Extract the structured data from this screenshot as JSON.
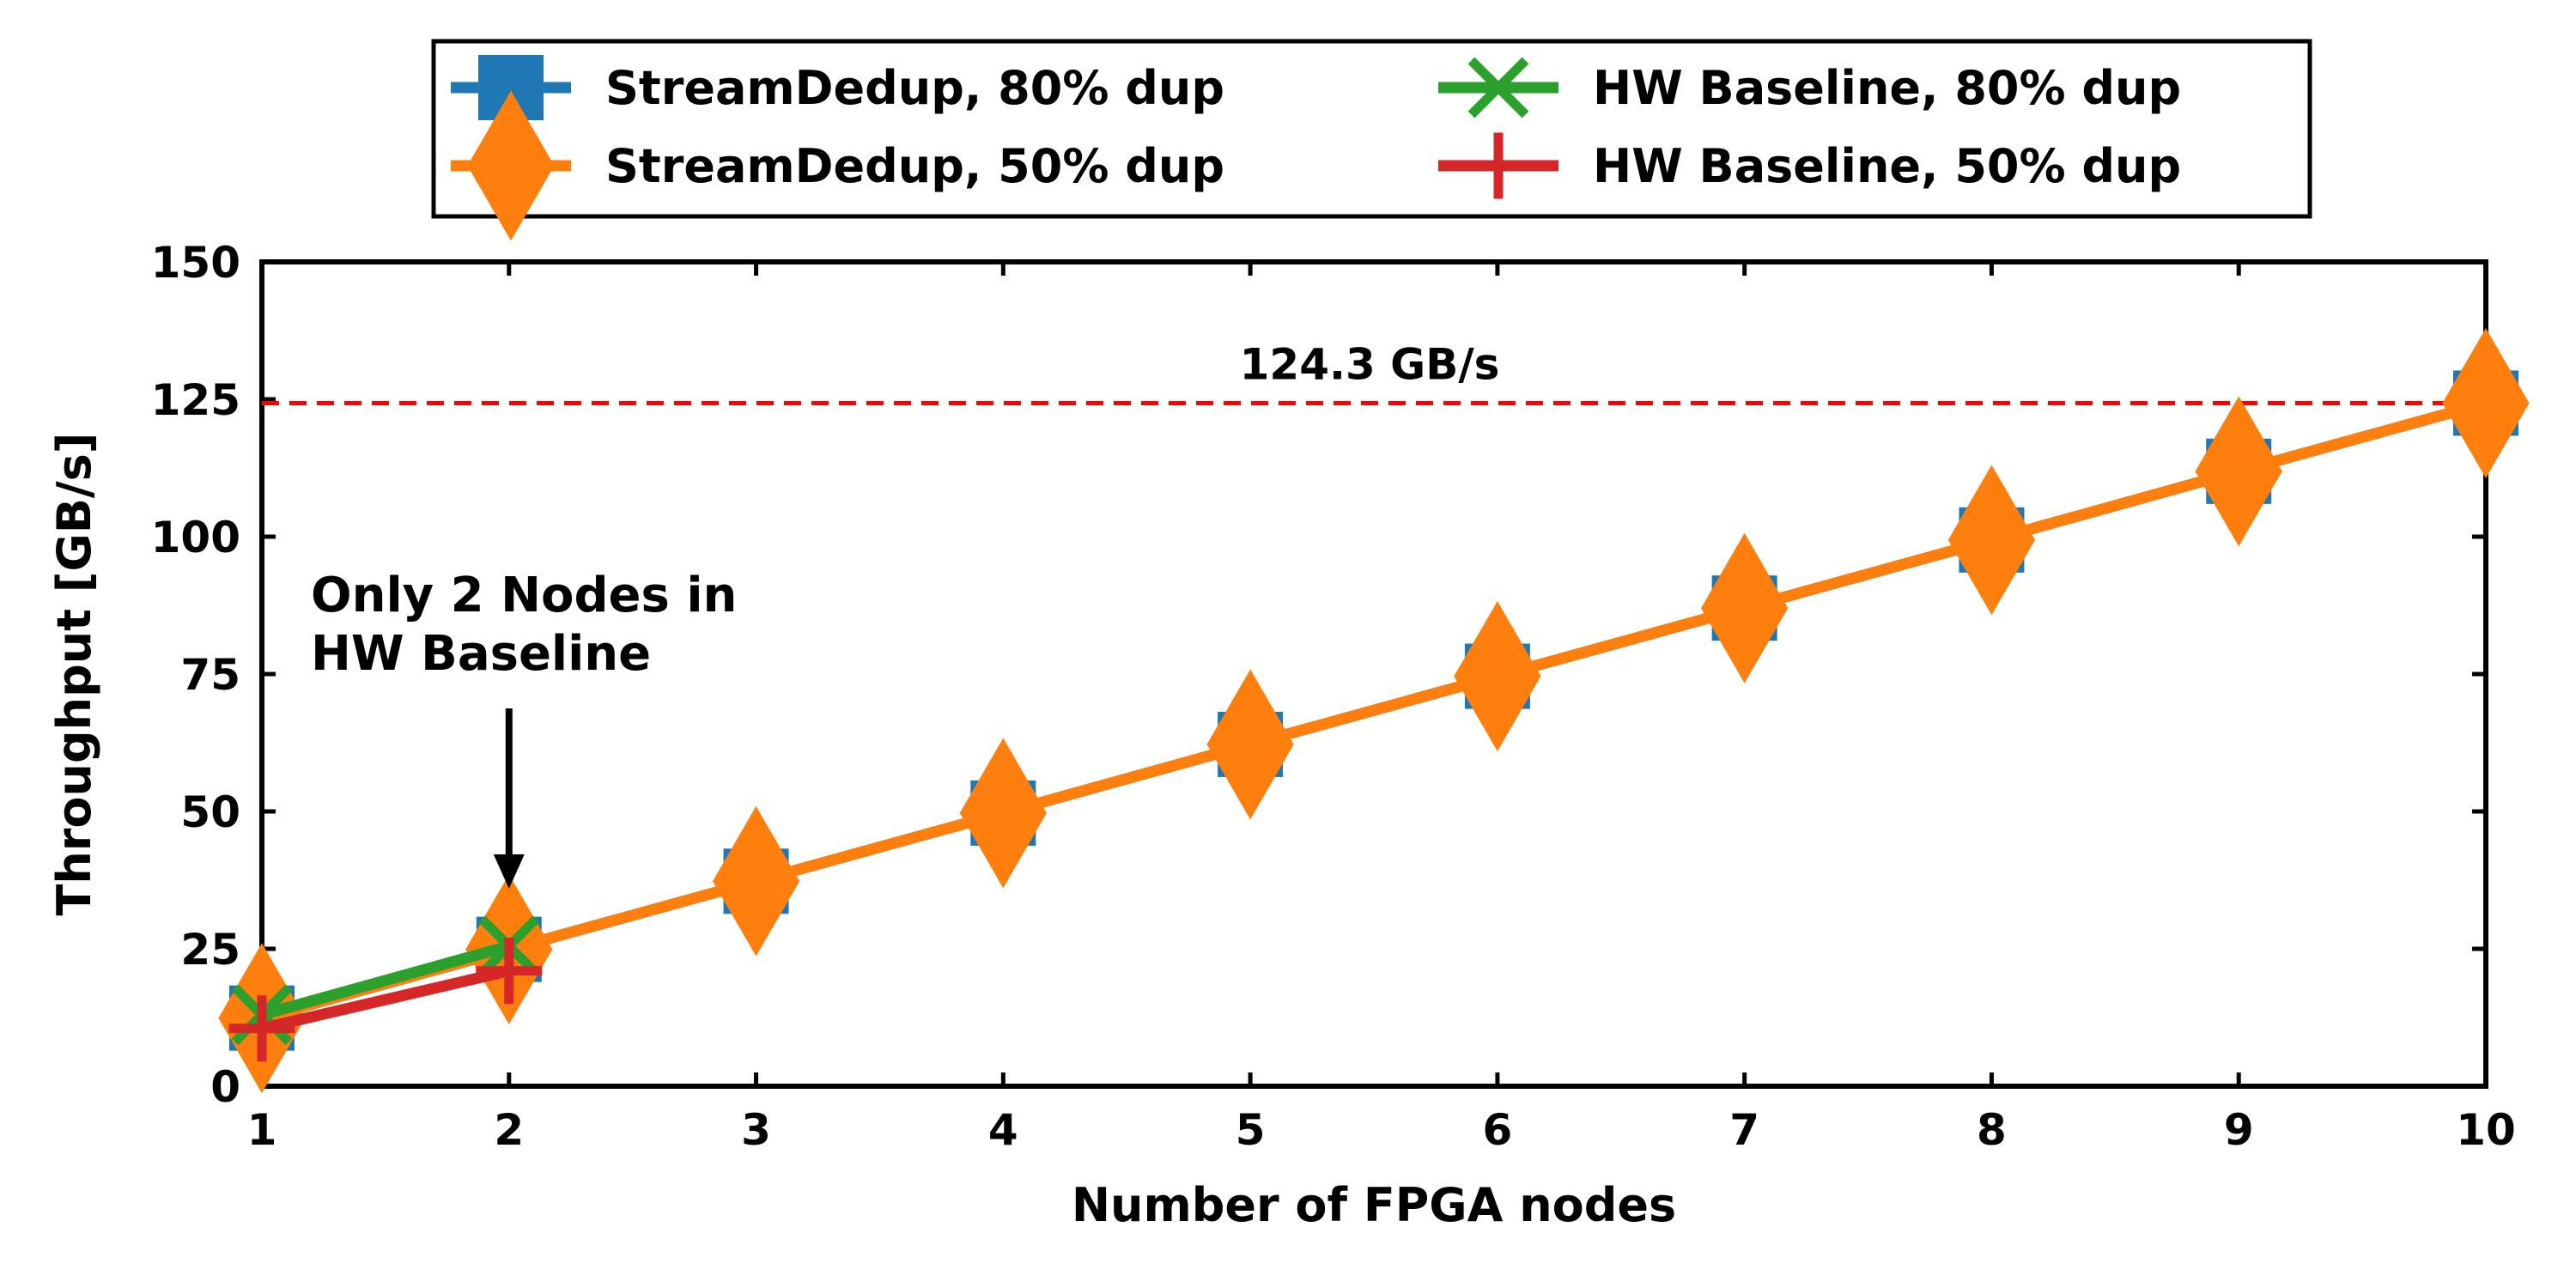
{
  "chart_data": {
    "type": "line",
    "xlabel": "Number of FPGA nodes",
    "ylabel": "Throughput [GB/s]",
    "xlim": [
      1,
      10
    ],
    "ylim": [
      0,
      150
    ],
    "xticks": [
      1,
      2,
      3,
      4,
      5,
      6,
      7,
      8,
      9,
      10
    ],
    "yticks": [
      0,
      25,
      50,
      75,
      100,
      125,
      150
    ],
    "grid": false,
    "legend_position": "top-center",
    "series": [
      {
        "name": "StreamDedup, 80% dup",
        "color": "#1f77b4",
        "marker": "square",
        "x": [
          1,
          2,
          3,
          4,
          5,
          6,
          7,
          8,
          9,
          10
        ],
        "y": [
          12.4,
          24.9,
          37.3,
          49.7,
          62.2,
          74.6,
          87.0,
          99.4,
          111.9,
          124.3
        ]
      },
      {
        "name": "StreamDedup, 50% dup",
        "color": "#ff7f0e",
        "marker": "diamond",
        "x": [
          1,
          2,
          3,
          4,
          5,
          6,
          7,
          8,
          9,
          10
        ],
        "y": [
          12.4,
          24.9,
          37.3,
          49.7,
          62.2,
          74.6,
          87.0,
          99.4,
          111.9,
          124.3
        ]
      },
      {
        "name": "HW Baseline, 80% dup",
        "color": "#2ca02c",
        "marker": "x",
        "x": [
          1,
          2
        ],
        "y": [
          13.0,
          25.5
        ]
      },
      {
        "name": "HW Baseline, 50% dup",
        "color": "#d62728",
        "marker": "plus",
        "x": [
          1,
          2
        ],
        "y": [
          10.5,
          21.0
        ]
      }
    ],
    "reference_line": {
      "y": 124.3,
      "label": "124.3 GB/s",
      "color": "#ff0000",
      "style": "dashed"
    },
    "annotation": {
      "lines": [
        "Only 2 Nodes in",
        "HW Baseline"
      ],
      "arrow_to_x": 2
    }
  }
}
